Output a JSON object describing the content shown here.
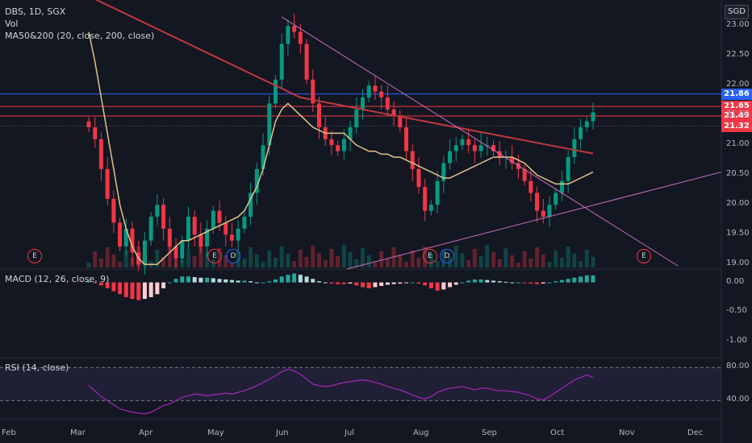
{
  "header": {
    "symbol_line": "DBS, 1D, SGX",
    "vol_label": "Vol",
    "ma_label": "MA50&200 (20, close, 200, close)",
    "currency_button": "SGD"
  },
  "macd_label": "MACD (12, 26, close, 9)",
  "rsi_label": "RSI (14, close)",
  "price_tags": [
    {
      "value": "21.86",
      "color": "#2962ff"
    },
    {
      "value": "21.65",
      "color": "#f23645"
    },
    {
      "value": "21.49",
      "color": "#f23645"
    },
    {
      "value": "21.32",
      "color": "#f23645"
    }
  ],
  "events": [
    {
      "type": "earnings",
      "label": "E"
    },
    {
      "type": "earnings",
      "label": "E"
    },
    {
      "type": "dividend",
      "label": "D"
    },
    {
      "type": "earnings",
      "label": "E"
    },
    {
      "type": "dividend",
      "label": "D"
    },
    {
      "type": "earnings",
      "label": "E"
    }
  ],
  "chart_data": [
    {
      "type": "candlestick",
      "title": "DBS, 1D, SGX",
      "x_ticks": [
        "Feb",
        "Mar",
        "Apr",
        "May",
        "Jun",
        "Jul",
        "Aug",
        "Sep",
        "Oct",
        "Nov",
        "Dec"
      ],
      "y_ticks": [
        "23.00",
        "22.50",
        "22.00",
        "21.50",
        "21.00",
        "20.50",
        "20.00",
        "19.50",
        "19.00"
      ],
      "ylim": [
        18.95,
        23.3
      ],
      "series": [
        {
          "name": "close",
          "values": [
            21.3,
            21.1,
            20.6,
            20.1,
            19.7,
            19.3,
            19.6,
            19.2,
            19.0,
            19.4,
            19.8,
            20.0,
            19.6,
            19.3,
            19.1,
            19.4,
            19.8,
            19.5,
            19.3,
            19.6,
            19.9,
            19.7,
            19.5,
            19.4,
            19.6,
            19.8,
            20.2,
            20.6,
            21.0,
            21.7,
            22.1,
            22.7,
            23.0,
            22.9,
            22.7,
            22.1,
            21.7,
            21.3,
            21.1,
            21.0,
            20.9,
            21.1,
            21.3,
            21.6,
            21.8,
            22.0,
            21.9,
            21.8,
            21.6,
            21.5,
            21.3,
            20.9,
            20.6,
            20.3,
            19.9,
            20.0,
            20.4,
            20.7,
            20.9,
            21.0,
            21.1,
            21.0,
            20.9,
            21.0,
            21.0,
            20.9,
            20.8,
            20.8,
            20.7,
            20.6,
            20.4,
            20.2,
            19.9,
            19.8,
            20.0,
            20.2,
            20.4,
            20.8,
            21.1,
            21.3,
            21.4,
            21.55
          ]
        },
        {
          "name": "MA20",
          "values": [
            22.9,
            22.4,
            21.8,
            21.2,
            20.6,
            20.0,
            19.6,
            19.3,
            19.1,
            19.0,
            19.0,
            19.0,
            19.1,
            19.2,
            19.3,
            19.4,
            19.4,
            19.45,
            19.5,
            19.55,
            19.6,
            19.65,
            19.7,
            19.75,
            19.8,
            19.9,
            20.1,
            20.3,
            20.6,
            21.0,
            21.4,
            21.6,
            21.7,
            21.6,
            21.5,
            21.4,
            21.3,
            21.25,
            21.2,
            21.2,
            21.2,
            21.2,
            21.1,
            21.0,
            20.95,
            20.9,
            20.9,
            20.85,
            20.85,
            20.8,
            20.8,
            20.75,
            20.7,
            20.65,
            20.6,
            20.55,
            20.5,
            20.45,
            20.45,
            20.5,
            20.55,
            20.6,
            20.65,
            20.7,
            20.75,
            20.8,
            20.8,
            20.8,
            20.8,
            20.75,
            20.7,
            20.6,
            20.5,
            20.45,
            20.4,
            20.35,
            20.35,
            20.35,
            20.4,
            20.45,
            20.5,
            20.55
          ]
        },
        {
          "name": "MA200",
          "values": [
            23.5,
            23.45,
            23.4,
            23.35,
            23.3,
            23.25,
            23.2,
            23.15,
            23.1,
            23.05,
            23.0,
            22.95,
            22.9,
            22.85,
            22.8,
            22.75,
            22.7,
            22.65,
            22.6,
            22.55,
            22.5,
            22.45,
            22.4,
            22.35,
            22.3,
            22.25,
            22.2,
            22.15,
            22.1,
            22.05,
            22.0,
            21.95,
            21.9,
            21.85,
            21.8,
            21.78,
            21.76,
            21.74,
            21.72,
            21.7,
            21.68,
            21.66,
            21.64,
            21.62,
            21.6,
            21.58,
            21.56,
            21.54,
            21.52,
            21.5,
            21.48,
            21.46,
            21.44,
            21.42,
            21.4,
            21.38,
            21.36,
            21.34,
            21.32,
            21.3,
            21.28,
            21.26,
            21.24,
            21.22,
            21.2,
            21.18,
            21.16,
            21.14,
            21.12,
            21.1,
            21.08,
            21.06,
            21.04,
            21.02,
            21.0,
            20.98,
            20.96,
            20.94,
            20.92,
            20.9,
            20.88,
            20.86
          ]
        }
      ]
    },
    {
      "type": "bar+line",
      "title": "MACD (12, 26, close, 9)",
      "y_ticks": [
        "0.00",
        "-0.50",
        "-1.00"
      ],
      "ylim": [
        -1.25,
        0.2
      ],
      "series": [
        {
          "name": "histogram",
          "values": [
            0.02,
            -0.01,
            -0.05,
            -0.1,
            -0.15,
            -0.2,
            -0.25,
            -0.28,
            -0.3,
            -0.28,
            -0.25,
            -0.2,
            -0.1,
            0.0,
            0.06,
            0.1,
            0.1,
            0.09,
            0.08,
            0.08,
            0.07,
            0.06,
            0.05,
            0.04,
            0.03,
            0.03,
            0.02,
            0.0,
            0.0,
            0.02,
            0.05,
            0.1,
            0.13,
            0.15,
            0.13,
            0.1,
            0.06,
            0.02,
            0.0,
            -0.02,
            -0.03,
            -0.03,
            -0.02,
            -0.05,
            -0.08,
            -0.1,
            -0.08,
            -0.06,
            -0.04,
            -0.03,
            -0.02,
            -0.01,
            0.0,
            -0.02,
            -0.05,
            -0.1,
            -0.14,
            -0.12,
            -0.08,
            -0.04,
            0.0,
            0.03,
            0.05,
            0.05,
            0.04,
            0.03,
            0.02,
            0.01,
            0.0,
            0.0,
            -0.01,
            -0.02,
            -0.03,
            -0.02,
            0.0,
            0.02,
            0.04,
            0.06,
            0.08,
            0.1,
            0.12,
            0.12
          ]
        }
      ]
    },
    {
      "type": "line",
      "title": "RSI (14, close)",
      "y_ticks": [
        "80.00",
        "40.00"
      ],
      "ylim": [
        20,
        90
      ],
      "series": [
        {
          "name": "RSI",
          "values": [
            58,
            52,
            45,
            40,
            35,
            30,
            28,
            26,
            25,
            24,
            26,
            30,
            34,
            36,
            40,
            44,
            46,
            48,
            47,
            46,
            47,
            48,
            49,
            48,
            50,
            52,
            55,
            58,
            62,
            66,
            70,
            75,
            78,
            76,
            72,
            66,
            60,
            58,
            57,
            58,
            60,
            62,
            63,
            64,
            65,
            64,
            62,
            60,
            57,
            55,
            53,
            50,
            47,
            44,
            42,
            45,
            50,
            53,
            55,
            56,
            57,
            55,
            53,
            55,
            55,
            53,
            52,
            52,
            51,
            50,
            48,
            46,
            42,
            41,
            45,
            50,
            55,
            60,
            65,
            68,
            71,
            68
          ]
        }
      ]
    }
  ]
}
